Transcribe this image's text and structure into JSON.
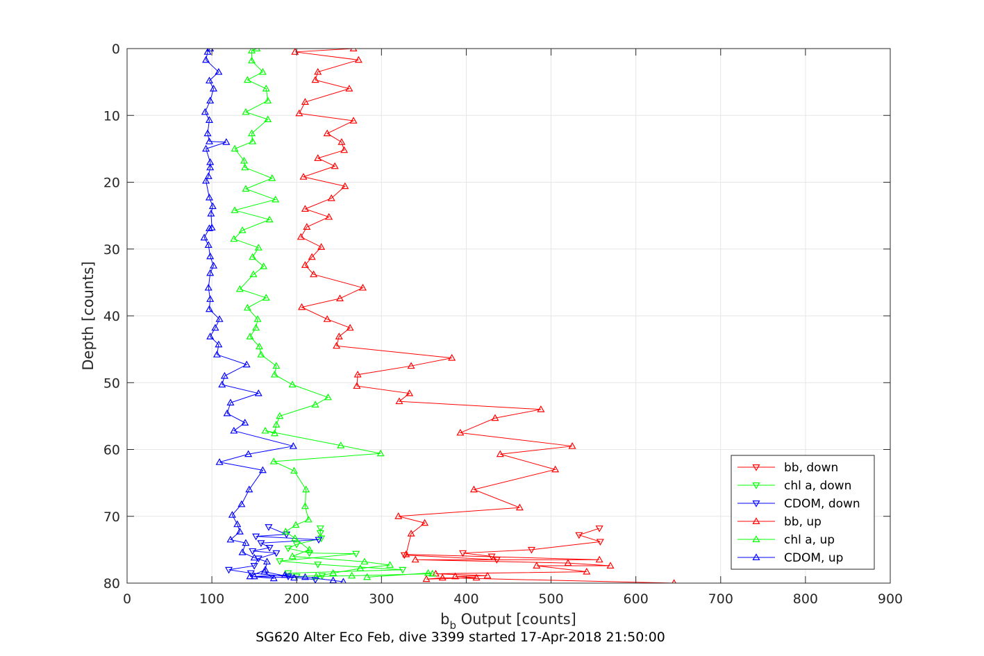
{
  "chart_data": {
    "type": "line",
    "xlabel_main": "b",
    "xlabel_sub": "b",
    "xlabel_rest": " Output [counts]",
    "ylabel": "Depth [counts]",
    "footer": "SG620 Alter Eco Feb, dive 3399 started 17-Apr-2018 21:50:00",
    "xlim": [
      0,
      900
    ],
    "ylim": [
      0,
      80
    ],
    "y_reversed": true,
    "grid": true,
    "legend_position": "bottom-right",
    "xticks": [
      "0",
      "100",
      "200",
      "300",
      "400",
      "500",
      "600",
      "700",
      "800",
      "900"
    ],
    "yticks": [
      "0",
      "10",
      "20",
      "30",
      "40",
      "50",
      "60",
      "70",
      "80"
    ],
    "colors": {
      "red": "#ff0000",
      "green": "#00ff00",
      "blue": "#0000ff"
    },
    "series": [
      {
        "name": "bb, down",
        "color": "#ff0000",
        "marker": "triangle-down",
        "x": [
          557,
          533,
          558,
          477,
          396,
          430,
          436,
          327
        ],
        "y": [
          71.8,
          72.8,
          73.8,
          75.0,
          75.5,
          76.0,
          76.5,
          75.8
        ]
      },
      {
        "name": "chl a, down",
        "color": "#00ff00",
        "marker": "triangle-down",
        "x": [
          228,
          228,
          229,
          200,
          190,
          215,
          270,
          180,
          225,
          325,
          190,
          200,
          230
        ],
        "y": [
          71.8,
          72.5,
          73.3,
          74.2,
          74.8,
          75.5,
          75.6,
          76.7,
          77.2,
          78.0,
          78.5,
          79.0,
          78.9
        ]
      },
      {
        "name": "CDOM, down",
        "color": "#0000ff",
        "marker": "triangle-down",
        "x": [
          167,
          188,
          152,
          226,
          158,
          168,
          148,
          176,
          155,
          150,
          120,
          146,
          190,
          222
        ],
        "y": [
          71.6,
          72.7,
          73.0,
          73.5,
          74.0,
          74.7,
          75.2,
          75.5,
          76.3,
          77.4,
          78.0,
          78.5,
          79.0,
          79.5
        ]
      },
      {
        "name": "bb, up",
        "color": "#ff0000",
        "marker": "triangle-up",
        "x": [
          267,
          198,
          273,
          225,
          222,
          262,
          210,
          203,
          267,
          236,
          253,
          256,
          225,
          245,
          208,
          257,
          241,
          210,
          238,
          212,
          205,
          229,
          218,
          210,
          220,
          278,
          251,
          206,
          236,
          263,
          250,
          247,
          383,
          335,
          272,
          271,
          333,
          321,
          488,
          434,
          393,
          525,
          440,
          505,
          409,
          463,
          320,
          351,
          335,
          329,
          557,
          340,
          520,
          570,
          483,
          542,
          364,
          425,
          387,
          412,
          353,
          372,
          645
        ],
        "y": [
          0,
          0.5,
          1.7,
          3.5,
          4.7,
          6.0,
          8.0,
          9.7,
          10.8,
          12.7,
          14.0,
          15.2,
          16.4,
          17.6,
          19.2,
          20.6,
          22.4,
          24.0,
          25.2,
          26.7,
          28.2,
          29.7,
          31.2,
          32.4,
          33.8,
          35.8,
          37.4,
          38.7,
          40.5,
          41.8,
          43.1,
          44.5,
          46.3,
          47.5,
          48.8,
          50.5,
          51.6,
          52.8,
          54.0,
          55.3,
          57.5,
          59.5,
          60.7,
          63.0,
          66.0,
          68.7,
          70.0,
          71.0,
          72.6,
          75.7,
          76.5,
          76.5,
          77.0,
          77.4,
          77.4,
          78.3,
          78.6,
          78.9,
          79.0,
          79.2,
          79.4,
          79.2,
          80.0
        ]
      },
      {
        "name": "chl a, up",
        "color": "#00ff00",
        "marker": "triangle-up",
        "x": [
          153,
          147,
          147,
          160,
          142,
          164,
          166,
          140,
          166,
          147,
          148,
          127,
          138,
          139,
          171,
          140,
          175,
          127,
          168,
          136,
          126,
          155,
          148,
          161,
          149,
          133,
          164,
          142,
          154,
          152,
          145,
          156,
          158,
          176,
          174,
          195,
          237,
          222,
          180,
          176,
          174,
          163,
          252,
          299,
          173,
          197,
          211,
          210,
          214,
          199,
          187,
          198,
          215,
          195,
          280,
          310,
          275,
          243,
          223,
          265,
          360,
          355,
          283
        ],
        "y": [
          0,
          0.3,
          1.8,
          3.5,
          4.7,
          6.0,
          7.8,
          9.5,
          10.6,
          12.7,
          13.9,
          15.0,
          16.8,
          17.8,
          19.4,
          21.0,
          22.6,
          24.2,
          25.6,
          27.2,
          28.5,
          29.8,
          31.2,
          32.6,
          33.8,
          36.0,
          37.3,
          38.8,
          40.5,
          41.8,
          43.1,
          44.6,
          45.8,
          47.5,
          48.8,
          50.3,
          52.2,
          53.3,
          55.0,
          56.3,
          57.6,
          57.2,
          59.4,
          60.6,
          61.8,
          63.2,
          66.0,
          68.5,
          70.5,
          71.3,
          72.3,
          73.3,
          75.0,
          76.0,
          76.8,
          77.3,
          77.8,
          78.5,
          79.0,
          78.9,
          78.6,
          78.5,
          79.1
        ]
      },
      {
        "name": "CDOM, up",
        "color": "#0000ff",
        "marker": "triangle-up",
        "x": [
          98,
          95,
          93,
          108,
          97,
          102,
          98,
          92,
          97,
          95,
          97,
          117,
          93,
          98,
          98,
          96,
          93,
          97,
          101,
          99,
          100,
          97,
          91,
          96,
          98,
          102,
          98,
          96,
          98,
          97,
          109,
          104,
          98,
          108,
          106,
          141,
          115,
          112,
          155,
          122,
          118,
          139,
          126,
          196,
          143,
          109,
          160,
          144,
          135,
          124,
          130,
          133,
          122,
          140,
          136,
          150,
          165,
          163,
          145,
          173,
          162,
          197,
          150,
          186,
          210,
          243,
          255
        ],
        "y": [
          0,
          0.5,
          1.7,
          3.5,
          4.8,
          6.0,
          7.8,
          9.5,
          10.7,
          12.7,
          13.9,
          14.0,
          15.0,
          17.0,
          17.8,
          19.1,
          19.8,
          22.3,
          23.6,
          24.7,
          26.8,
          26.9,
          28.3,
          29.4,
          31.1,
          32.5,
          33.6,
          35.8,
          37.5,
          39.0,
          40.5,
          41.8,
          43.1,
          44.3,
          45.8,
          47.3,
          49.0,
          50.3,
          51.6,
          53.0,
          54.6,
          56.0,
          57.2,
          59.5,
          60.7,
          61.9,
          63.1,
          66.0,
          68.2,
          69.8,
          71.2,
          72.3,
          73.5,
          74.0,
          75.4,
          76.2,
          76.8,
          78.0,
          79.0,
          79.3,
          78.3,
          79.2,
          79.0,
          78.8,
          79.1,
          79.6,
          79.8
        ]
      }
    ]
  }
}
